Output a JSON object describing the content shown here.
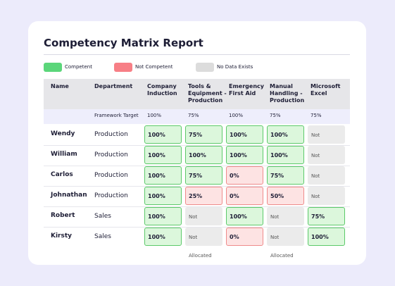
{
  "title": "Competency Matrix Report",
  "legend": [
    {
      "label": "Competent",
      "color": "#5bd67a"
    },
    {
      "label": "Not Competent",
      "color": "#f77f86"
    },
    {
      "label": "No Data Exists",
      "color": "#dcdcdc"
    }
  ],
  "table": {
    "headers": [
      "Name",
      "Department",
      "Company Induction",
      "Tools & Equipment - Production",
      "Emergency First Aid",
      "Manual Handling - Production",
      "Microsoft Excel"
    ],
    "target": {
      "label": "Framework Target",
      "values": [
        "100%",
        "75%",
        "100%",
        "75%",
        "75%"
      ]
    },
    "rows": [
      {
        "name": "Wendy",
        "department": "Production",
        "cells": [
          {
            "text": "100%",
            "color": "#5bd67a"
          },
          {
            "text": "75%",
            "color": "#5bd67a"
          },
          {
            "text": "100%",
            "color": "#5bd67a"
          },
          {
            "text": "100%",
            "color": "#5bd67a"
          },
          {
            "text": "Not Allocated",
            "color": "#dcdcdc"
          }
        ]
      },
      {
        "name": "William",
        "department": "Production",
        "cells": [
          {
            "text": "100%",
            "color": "#5bd67a"
          },
          {
            "text": "100%",
            "color": "#5bd67a"
          },
          {
            "text": "100%",
            "color": "#5bd67a"
          },
          {
            "text": "100%",
            "color": "#5bd67a"
          },
          {
            "text": "Not Allocated",
            "color": "#dcdcdc"
          }
        ]
      },
      {
        "name": "Carlos",
        "department": "Production",
        "cells": [
          {
            "text": "100%",
            "color": "#5bd67a"
          },
          {
            "text": "75%",
            "color": "#5bd67a"
          },
          {
            "text": "0%",
            "color": "#f77f86"
          },
          {
            "text": "75%",
            "color": "#5bd67a"
          },
          {
            "text": "Not Allocated",
            "color": "#dcdcdc"
          }
        ]
      },
      {
        "name": "Johnathan",
        "department": "Production",
        "cells": [
          {
            "text": "100%",
            "color": "#5bd67a"
          },
          {
            "text": "25%",
            "color": "#f77f86"
          },
          {
            "text": "0%",
            "color": "#f77f86"
          },
          {
            "text": "50%",
            "color": "#f77f86"
          },
          {
            "text": "Not Allocated",
            "color": "#dcdcdc"
          }
        ]
      },
      {
        "name": "Robert",
        "department": "Sales",
        "cells": [
          {
            "text": "100%",
            "color": "#5bd67a"
          },
          {
            "text": "Not Allocated",
            "color": "#dcdcdc"
          },
          {
            "text": "100%",
            "color": "#5bd67a"
          },
          {
            "text": "Not Allocated",
            "color": "#dcdcdc"
          },
          {
            "text": "75%",
            "color": "#5bd67a"
          }
        ]
      },
      {
        "name": "Kirsty",
        "department": "Sales",
        "cells": [
          {
            "text": "100%",
            "color": "#5bd67a"
          },
          {
            "text": "Not Allocated",
            "color": "#dcdcdc"
          },
          {
            "text": "0%",
            "color": "#f77f86"
          },
          {
            "text": "Not Allocated",
            "color": "#dcdcdc"
          },
          {
            "text": "100%",
            "color": "#5bd67a"
          }
        ]
      }
    ]
  }
}
